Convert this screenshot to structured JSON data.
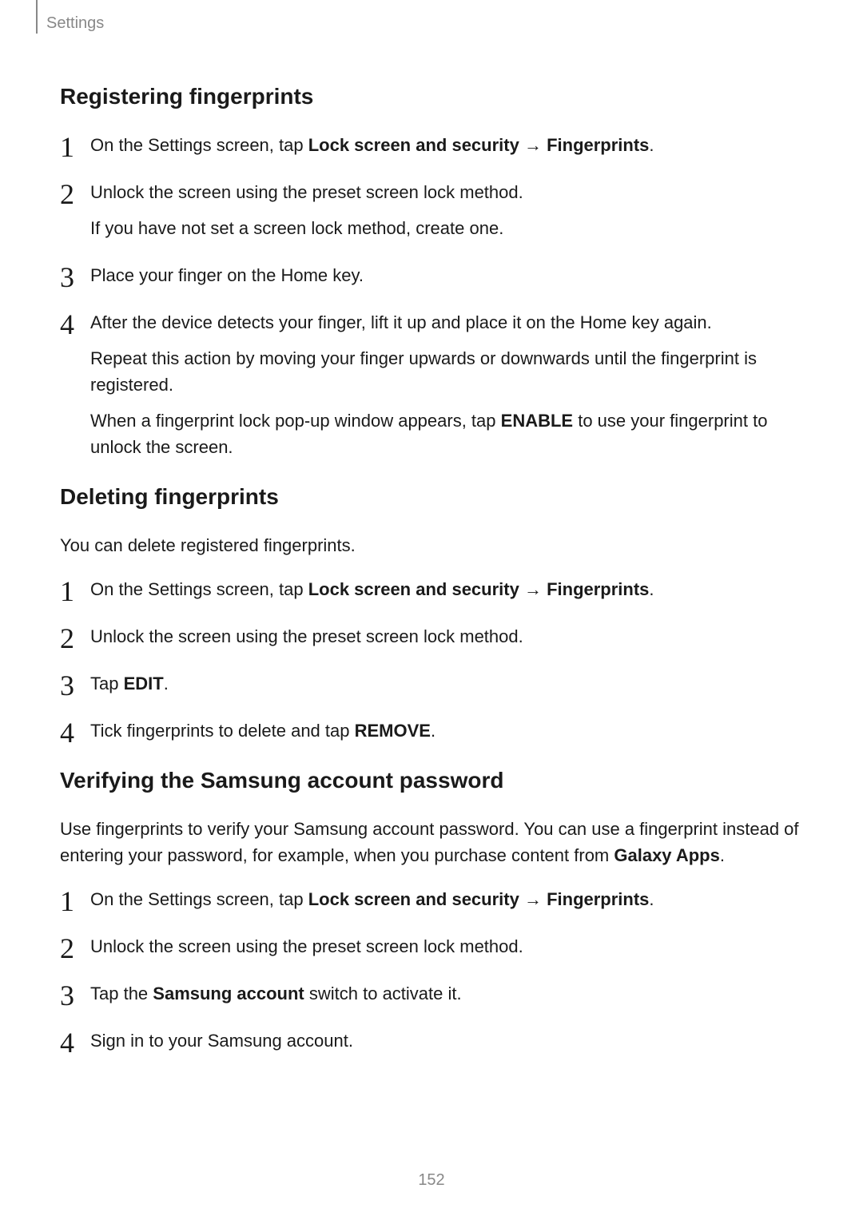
{
  "header": {
    "section": "Settings"
  },
  "sections": [
    {
      "title": "Registering fingerprints",
      "intro": null,
      "steps": [
        {
          "parts": [
            {
              "text": "On the Settings screen, tap ",
              "bold": false
            },
            {
              "text": "Lock screen and security",
              "bold": true
            },
            {
              "text": " → ",
              "bold": false,
              "arrow": true
            },
            {
              "text": "Fingerprints",
              "bold": true
            },
            {
              "text": ".",
              "bold": false
            }
          ],
          "extra": [
            null
          ]
        },
        {
          "parts": [
            {
              "text": "Unlock the screen using the preset screen lock method.",
              "bold": false
            }
          ],
          "extra": [
            "If you have not set a screen lock method, create one."
          ]
        },
        {
          "parts": [
            {
              "text": "Place your finger on the Home key.",
              "bold": false
            }
          ],
          "extra": []
        },
        {
          "parts": [
            {
              "text": "After the device detects your finger, lift it up and place it on the Home key again.",
              "bold": false
            }
          ],
          "extra": [
            "Repeat this action by moving your finger upwards or downwards until the fingerprint is registered."
          ],
          "extraRich": [
            {
              "parts": [
                {
                  "text": "When a fingerprint lock pop-up window appears, tap ",
                  "bold": false
                },
                {
                  "text": "ENABLE",
                  "bold": true
                },
                {
                  "text": " to use your fingerprint to unlock the screen.",
                  "bold": false
                }
              ]
            }
          ]
        }
      ]
    },
    {
      "title": "Deleting fingerprints",
      "intro": "You can delete registered fingerprints.",
      "steps": [
        {
          "parts": [
            {
              "text": "On the Settings screen, tap ",
              "bold": false
            },
            {
              "text": "Lock screen and security",
              "bold": true
            },
            {
              "text": " → ",
              "bold": false,
              "arrow": true
            },
            {
              "text": "Fingerprints",
              "bold": true
            },
            {
              "text": ".",
              "bold": false
            }
          ],
          "extra": []
        },
        {
          "parts": [
            {
              "text": "Unlock the screen using the preset screen lock method.",
              "bold": false
            }
          ],
          "extra": []
        },
        {
          "parts": [
            {
              "text": "Tap ",
              "bold": false
            },
            {
              "text": "EDIT",
              "bold": true
            },
            {
              "text": ".",
              "bold": false
            }
          ],
          "extra": []
        },
        {
          "parts": [
            {
              "text": "Tick fingerprints to delete and tap ",
              "bold": false
            },
            {
              "text": "REMOVE",
              "bold": true
            },
            {
              "text": ".",
              "bold": false
            }
          ],
          "extra": []
        }
      ]
    },
    {
      "title": "Verifying the Samsung account password",
      "introRich": {
        "parts": [
          {
            "text": "Use fingerprints to verify your Samsung account password. You can use a fingerprint instead of entering your password, for example, when you purchase content from ",
            "bold": false
          },
          {
            "text": "Galaxy Apps",
            "bold": true
          },
          {
            "text": ".",
            "bold": false
          }
        ]
      },
      "steps": [
        {
          "parts": [
            {
              "text": "On the Settings screen, tap ",
              "bold": false
            },
            {
              "text": "Lock screen and security",
              "bold": true
            },
            {
              "text": " → ",
              "bold": false,
              "arrow": true
            },
            {
              "text": "Fingerprints",
              "bold": true
            },
            {
              "text": ".",
              "bold": false
            }
          ],
          "extra": []
        },
        {
          "parts": [
            {
              "text": "Unlock the screen using the preset screen lock method.",
              "bold": false
            }
          ],
          "extra": []
        },
        {
          "parts": [
            {
              "text": "Tap the ",
              "bold": false
            },
            {
              "text": "Samsung account",
              "bold": true
            },
            {
              "text": " switch to activate it.",
              "bold": false
            }
          ],
          "extra": []
        },
        {
          "parts": [
            {
              "text": "Sign in to your Samsung account.",
              "bold": false
            }
          ],
          "extra": []
        }
      ]
    }
  ],
  "pageNumber": "152"
}
